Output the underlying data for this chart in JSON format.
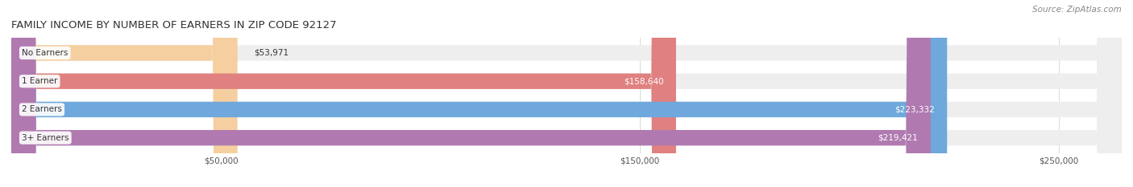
{
  "title": "FAMILY INCOME BY NUMBER OF EARNERS IN ZIP CODE 92127",
  "source": "Source: ZipAtlas.com",
  "categories": [
    "No Earners",
    "1 Earner",
    "2 Earners",
    "3+ Earners"
  ],
  "values": [
    53971,
    158640,
    223332,
    219421
  ],
  "bar_colors": [
    "#f5cfa0",
    "#e08080",
    "#6fa8dc",
    "#b07ab0"
  ],
  "bar_bg_color": "#eeeeee",
  "value_labels": [
    "$53,971",
    "$158,640",
    "$223,332",
    "$219,421"
  ],
  "x_ticks": [
    50000,
    150000,
    250000
  ],
  "x_tick_labels": [
    "$50,000",
    "$150,000",
    "$250,000"
  ],
  "xlim": [
    0,
    265000
  ],
  "bar_height": 0.55,
  "bg_color": "#ffffff",
  "title_fontsize": 9.5,
  "source_fontsize": 7.5,
  "label_fontsize": 7.5,
  "value_fontsize": 7.5
}
